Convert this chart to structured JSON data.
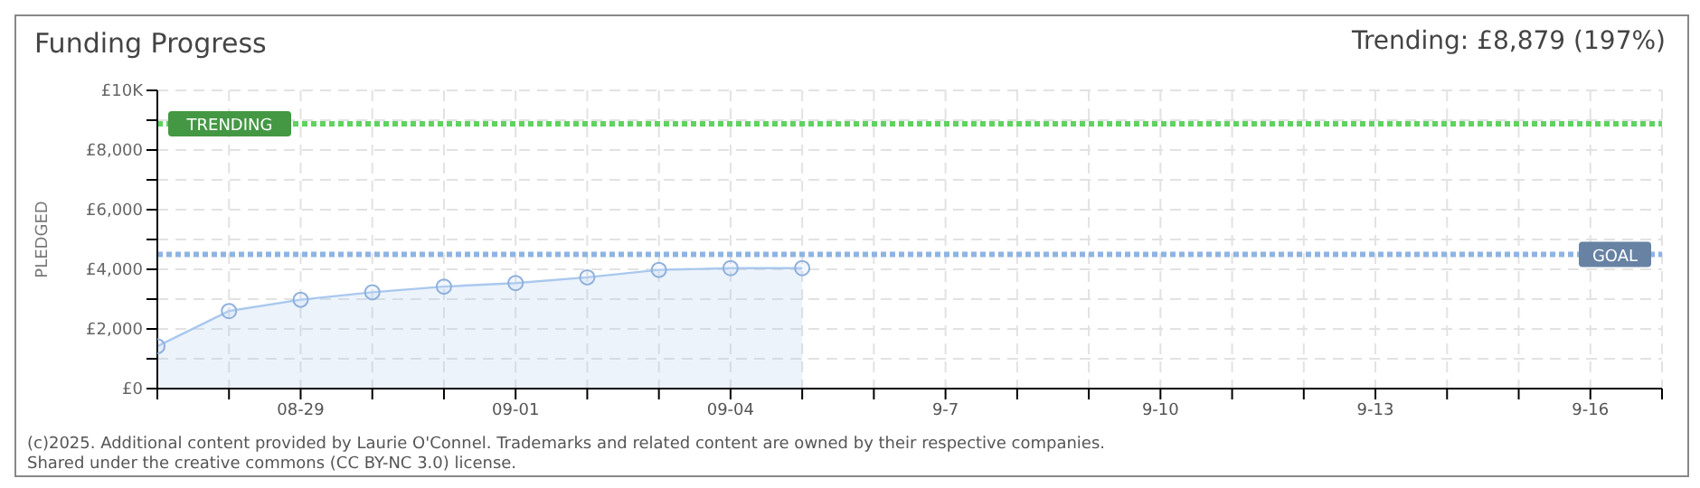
{
  "chart_data": {
    "type": "area",
    "title": "Funding Progress",
    "ylabel": "PLEDGED",
    "x": [
      "--08-27",
      "--08-28",
      "--08-29",
      "--08-30",
      "--08-31",
      "--09-01",
      "--09-02",
      "--09-03",
      "--09-04",
      "--09-05"
    ],
    "series": [
      {
        "color": "#a9c8ee",
        "values": [
          1420,
          2600,
          2980,
          3230,
          3420,
          3540,
          3730,
          3980,
          4040,
          4040
        ]
      }
    ],
    "xlim": [
      "--08-27",
      "--09-17"
    ],
    "xticks": [
      {
        "value": "--08-27",
        "label": null
      },
      {
        "value": "--08-28",
        "label": null
      },
      {
        "value": "--08-29",
        "label": "08-29"
      },
      {
        "value": "--08-30",
        "label": null
      },
      {
        "value": "--08-31",
        "label": null
      },
      {
        "value": "--09-01",
        "label": "09-01"
      },
      {
        "value": "--09-02",
        "label": null
      },
      {
        "value": "--09-03",
        "label": null
      },
      {
        "value": "--09-04",
        "label": "09-04"
      },
      {
        "value": "--09-05",
        "label": null
      },
      {
        "value": "--09-06",
        "label": null
      },
      {
        "value": "--09-07",
        "label": "9-7"
      },
      {
        "value": "--09-08",
        "label": null
      },
      {
        "value": "--09-09",
        "label": null
      },
      {
        "value": "--09-10",
        "label": "9-10"
      },
      {
        "value": "--09-11",
        "label": null
      },
      {
        "value": "--09-12",
        "label": null
      },
      {
        "value": "--09-13",
        "label": "9-13"
      },
      {
        "value": "--09-14",
        "label": null
      },
      {
        "value": "--09-15",
        "label": null
      },
      {
        "value": "--09-16",
        "label": "9-16"
      },
      {
        "value": "--09-17",
        "label": null
      }
    ],
    "ylim": [
      0,
      10000
    ],
    "yticks": [
      {
        "value": 0,
        "label": "£0"
      },
      {
        "value": 1000,
        "label": null
      },
      {
        "value": 2000,
        "label": "£2,000"
      },
      {
        "value": 3000,
        "label": null
      },
      {
        "value": 4000,
        "label": "£4,000"
      },
      {
        "value": 5000,
        "label": null
      },
      {
        "value": 6000,
        "label": "£6,000"
      },
      {
        "value": 7000,
        "label": null
      },
      {
        "value": 8000,
        "label": "£8,000"
      },
      {
        "value": 9000,
        "label": null
      },
      {
        "value": 10000,
        "label": "£10K"
      }
    ],
    "ref_lines": [
      {
        "axis": "y",
        "value": 8879,
        "label": "TRENDING",
        "color": "#5fd35f",
        "line_style": "dotted"
      },
      {
        "axis": "y",
        "value": 4500,
        "label": "GOAL",
        "color": "#8fb4e3",
        "line_style": "dotted"
      }
    ],
    "grid": true,
    "marker": "circle",
    "legend": false,
    "annotations": [
      "Trending: £8,879 (197%)",
      "(c)2025. Additional content provided by Laurie O'Connel. Trademarks and related content are owned by their respective companies.",
      "Shared under the creative commons (CC BY-NC 3.0) license."
    ]
  }
}
